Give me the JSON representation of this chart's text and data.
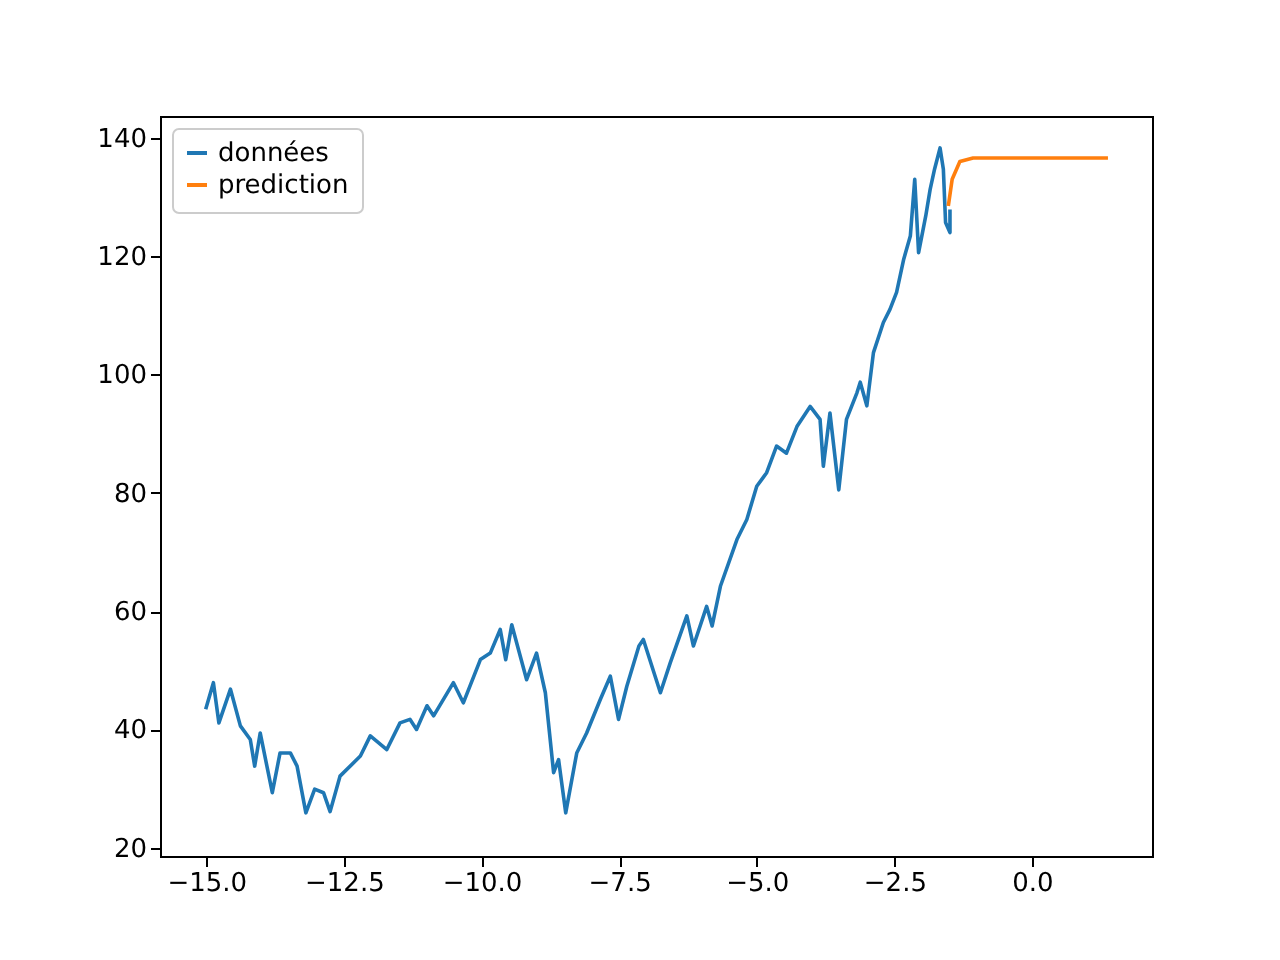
{
  "chart_data": {
    "type": "line",
    "legend": "top left",
    "line_style": "solid",
    "xlim": [
      -15.84,
      2.18
    ],
    "ylim": [
      18.6,
      143.7
    ],
    "xticks": [
      {
        "value": -15,
        "label": "−15.0"
      },
      {
        "value": -12.5,
        "label": "−12.5"
      },
      {
        "value": -10,
        "label": "−10.0"
      },
      {
        "value": -7.5,
        "label": "−7.5"
      },
      {
        "value": -5,
        "label": "−5.0"
      },
      {
        "value": -2.5,
        "label": "−2.5"
      },
      {
        "value": 0,
        "label": "0.0"
      }
    ],
    "yticks": [
      20,
      40,
      60,
      80,
      100,
      120,
      140
    ],
    "series": [
      {
        "name": "données",
        "color": "#1f77b4",
        "x": [
          -15.01,
          -14.87,
          -14.77,
          -14.56,
          -14.38,
          -14.2,
          -14.12,
          -14.02,
          -13.8,
          -13.66,
          -13.47,
          -13.35,
          -13.19,
          -13.03,
          -12.87,
          -12.75,
          -12.57,
          -12.2,
          -12.02,
          -11.72,
          -11.48,
          -11.3,
          -11.18,
          -10.99,
          -10.87,
          -10.51,
          -10.33,
          -10.02,
          -9.84,
          -9.66,
          -9.56,
          -9.45,
          -9.18,
          -9.0,
          -8.84,
          -8.69,
          -8.6,
          -8.47,
          -8.27,
          -8.09,
          -7.84,
          -7.66,
          -7.51,
          -7.36,
          -7.14,
          -7.06,
          -6.75,
          -6.57,
          -6.27,
          -6.15,
          -5.91,
          -5.81,
          -5.66,
          -5.36,
          -5.18,
          -5.0,
          -4.82,
          -4.64,
          -4.46,
          -4.27,
          -4.03,
          -3.85,
          -3.79,
          -3.67,
          -3.51,
          -3.37,
          -3.18,
          -3.12,
          -3.0,
          -2.88,
          -2.7,
          -2.58,
          -2.46,
          -2.33,
          -2.21,
          -2.13,
          -2.06,
          -1.93,
          -1.85,
          -1.77,
          -1.67,
          -1.61,
          -1.57,
          -1.49,
          -1.49
        ],
        "values": [
          43.4,
          47.9,
          41.1,
          46.8,
          40.6,
          38.3,
          33.8,
          39.4,
          29.3,
          36.0,
          36.0,
          33.8,
          25.9,
          29.9,
          29.3,
          26.1,
          32.1,
          35.5,
          38.9,
          36.6,
          41.1,
          41.7,
          40.0,
          44.0,
          42.3,
          47.9,
          44.5,
          51.8,
          52.9,
          56.9,
          51.8,
          57.7,
          48.4,
          52.9,
          46.2,
          32.7,
          34.9,
          25.9,
          36.0,
          39.4,
          45.1,
          49.0,
          41.7,
          47.3,
          54.1,
          55.2,
          46.2,
          51.3,
          59.2,
          54.1,
          60.8,
          57.5,
          64.2,
          72.1,
          75.5,
          81.1,
          83.4,
          87.9,
          86.7,
          91.2,
          94.6,
          92.4,
          84.5,
          93.5,
          80.5,
          92.4,
          96.9,
          98.7,
          94.7,
          103.7,
          108.8,
          111.0,
          113.9,
          119.5,
          123.4,
          133.0,
          120.6,
          126.8,
          131.3,
          134.7,
          138.3,
          134.7,
          125.7,
          124.0,
          127.9
        ]
      },
      {
        "name": "prediction",
        "color": "#ff7f0e",
        "x": [
          -1.52,
          -1.45,
          -1.31,
          -1.07,
          1.38
        ],
        "values": [
          128.5,
          133.0,
          136.0,
          136.6,
          136.6
        ]
      }
    ]
  }
}
